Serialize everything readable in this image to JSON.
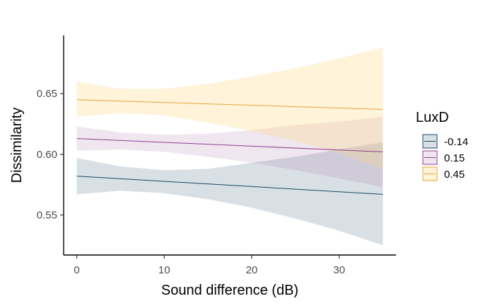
{
  "chart_data": {
    "type": "line",
    "title": "",
    "xlabel": "Sound difference (dB)",
    "ylabel": "Dissimilarity",
    "xlim": [
      -1.5,
      36.5
    ],
    "ylim": [
      0.517,
      0.698
    ],
    "x_ticks": [
      0,
      10,
      20,
      30
    ],
    "x_tick_labels": [
      "0",
      "10",
      "20",
      "30"
    ],
    "y_ticks": [
      0.55,
      0.6,
      0.65
    ],
    "y_tick_labels": [
      "0.55",
      "0.60",
      "0.65"
    ],
    "grid": false,
    "legend": {
      "title": "LuxD",
      "position": "right"
    },
    "series": [
      {
        "name": "-0.14",
        "color": "#1b4963",
        "fill": "rgba(27,73,99,0.17)",
        "x": [
          0,
          35
        ],
        "y": [
          0.582,
          0.567
        ],
        "ribbon": [
          {
            "x": 0,
            "lower": 0.567,
            "upper": 0.597
          },
          {
            "x": 5,
            "lower": 0.57,
            "upper": 0.59
          },
          {
            "x": 10,
            "lower": 0.568,
            "upper": 0.587
          },
          {
            "x": 15,
            "lower": 0.563,
            "upper": 0.588
          },
          {
            "x": 20,
            "lower": 0.556,
            "upper": 0.593
          },
          {
            "x": 25,
            "lower": 0.547,
            "upper": 0.598
          },
          {
            "x": 30,
            "lower": 0.537,
            "upper": 0.604
          },
          {
            "x": 35,
            "lower": 0.525,
            "upper": 0.61
          }
        ]
      },
      {
        "name": "0.15",
        "color": "#8e3f8e",
        "fill": "rgba(142,63,142,0.13)",
        "x": [
          0,
          35
        ],
        "y": [
          0.613,
          0.602
        ],
        "ribbon": [
          {
            "x": 0,
            "lower": 0.603,
            "upper": 0.623
          },
          {
            "x": 5,
            "lower": 0.604,
            "upper": 0.618
          },
          {
            "x": 10,
            "lower": 0.602,
            "upper": 0.616
          },
          {
            "x": 15,
            "lower": 0.598,
            "upper": 0.617
          },
          {
            "x": 20,
            "lower": 0.593,
            "upper": 0.62
          },
          {
            "x": 25,
            "lower": 0.587,
            "upper": 0.624
          },
          {
            "x": 30,
            "lower": 0.58,
            "upper": 0.627
          },
          {
            "x": 35,
            "lower": 0.573,
            "upper": 0.631
          }
        ]
      },
      {
        "name": "0.45",
        "color": "#e8a43a",
        "fill": "rgba(255,214,130,0.30)",
        "x": [
          0,
          35
        ],
        "y": [
          0.645,
          0.637
        ],
        "ribbon": [
          {
            "x": 0,
            "lower": 0.631,
            "upper": 0.66
          },
          {
            "x": 5,
            "lower": 0.634,
            "upper": 0.654
          },
          {
            "x": 10,
            "lower": 0.632,
            "upper": 0.654
          },
          {
            "x": 15,
            "lower": 0.626,
            "upper": 0.658
          },
          {
            "x": 20,
            "lower": 0.619,
            "upper": 0.664
          },
          {
            "x": 25,
            "lower": 0.611,
            "upper": 0.671
          },
          {
            "x": 30,
            "lower": 0.601,
            "upper": 0.679
          },
          {
            "x": 35,
            "lower": 0.588,
            "upper": 0.688
          }
        ]
      }
    ]
  }
}
